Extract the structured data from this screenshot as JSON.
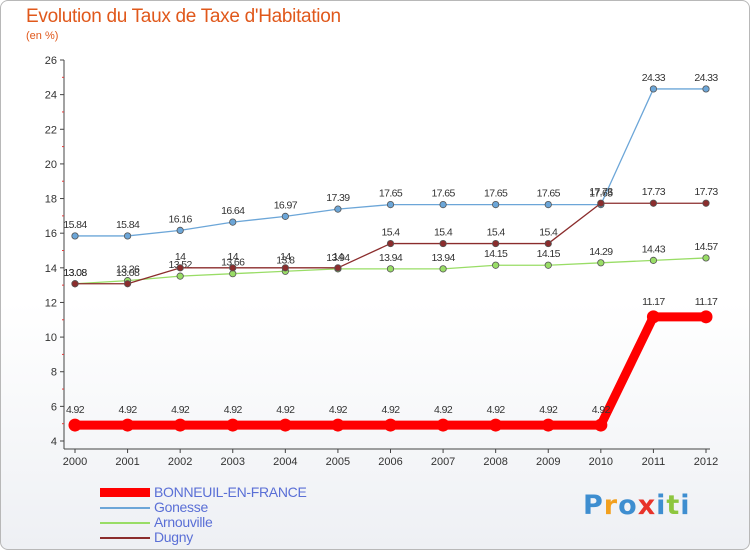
{
  "header": {
    "title": "Evolution du Taux de Taxe d'Habitation",
    "subtitle": "(en %)"
  },
  "logo": {
    "text": "Proxiti",
    "colors": [
      "#3e8ed0",
      "#f2a01e",
      "#3e8ed0",
      "#e8332a",
      "#3e8ed0",
      "#8dc63f",
      "#3e8ed0"
    ]
  },
  "chart_data": {
    "type": "line",
    "x": [
      "2000",
      "2001",
      "2002",
      "2003",
      "2004",
      "2005",
      "2006",
      "2007",
      "2008",
      "2009",
      "2010",
      "2011",
      "2012"
    ],
    "ylim": [
      4,
      26
    ],
    "yticks": [
      4,
      6,
      8,
      10,
      12,
      14,
      16,
      18,
      20,
      22,
      24,
      26
    ],
    "grid": false,
    "legend_position": "bottom-left",
    "series": [
      {
        "name": "BONNEUIL-EN-FRANCE",
        "color": "#ff0000",
        "thick": true,
        "values": [
          4.92,
          4.92,
          4.92,
          4.92,
          4.92,
          4.92,
          4.92,
          4.92,
          4.92,
          4.92,
          4.92,
          11.17,
          11.17
        ],
        "labels": [
          "4.92",
          "4.92",
          "4.92",
          "4.92",
          "4.92",
          "4.92",
          "4.92",
          "4.92",
          "4.92",
          "4.92",
          "4.92",
          "11.17",
          "11.17"
        ]
      },
      {
        "name": "Gonesse",
        "color": "#6ca6d8",
        "thick": false,
        "values": [
          15.84,
          15.84,
          16.16,
          16.64,
          16.97,
          17.39,
          17.65,
          17.65,
          17.65,
          17.65,
          17.65,
          24.33,
          24.33
        ],
        "labels": [
          "15.84",
          "15.84",
          "16.16",
          "16.64",
          "16.97",
          "17.39",
          "17.65",
          "17.65",
          "17.65",
          "17.65",
          "17.65",
          "24.33",
          "24.33"
        ]
      },
      {
        "name": "Arnouville",
        "color": "#99dd66",
        "thick": false,
        "values": [
          13.08,
          13.26,
          13.52,
          13.66,
          13.8,
          13.94,
          13.94,
          13.94,
          14.15,
          14.15,
          14.29,
          14.43,
          14.57
        ],
        "labels": [
          "13.08",
          "13.26",
          "13.52",
          "13.66",
          "13.8",
          "13.94",
          "13.94",
          "13.94",
          "14.15",
          "14.15",
          "14.29",
          "14.43",
          "14.57"
        ]
      },
      {
        "name": "Dugny",
        "color": "#8b2d2d",
        "thick": false,
        "values": [
          13.08,
          13.08,
          14,
          14,
          14,
          14,
          15.4,
          15.4,
          15.4,
          15.4,
          17.73,
          17.73,
          17.73
        ],
        "labels": [
          "13.08",
          "13.08",
          "14",
          "14",
          "14",
          "14",
          "15.4",
          "15.4",
          "15.4",
          "15.4",
          "17.73",
          "17.73",
          "17.73"
        ]
      }
    ]
  }
}
